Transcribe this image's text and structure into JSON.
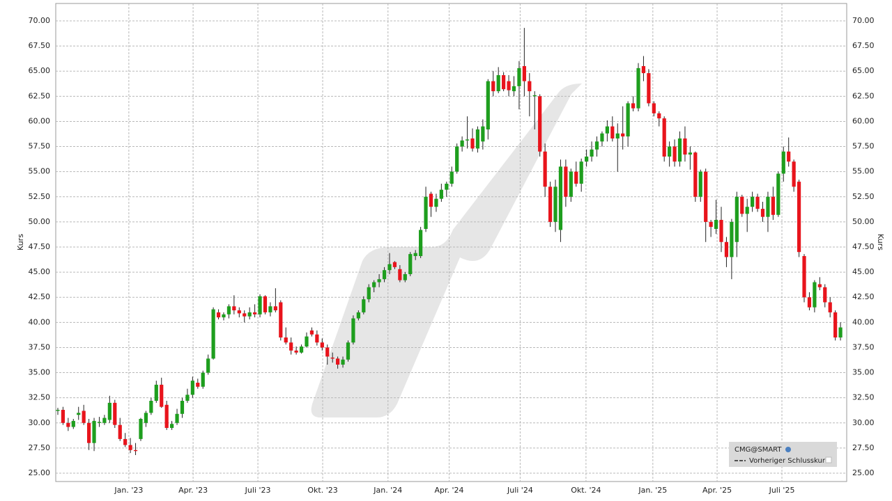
{
  "chart_data": {
    "type": "candlestick",
    "y_label": "Kurs",
    "legend": {
      "symbol": "CMG@SMART",
      "reference": "Vorheriger Schlusskurs"
    },
    "up_color": "#1e9e1e",
    "down_color": "#e8141c",
    "grid": true,
    "ylim": [
      24.17,
      71.73
    ],
    "yticks": [
      {
        "value": 25,
        "label": "25.00"
      },
      {
        "value": 27.5,
        "label": "27.50"
      },
      {
        "value": 30,
        "label": "30.00"
      },
      {
        "value": 32.5,
        "label": "32.50"
      },
      {
        "value": 35,
        "label": "35.00"
      },
      {
        "value": 37.5,
        "label": "37.50"
      },
      {
        "value": 40,
        "label": "40.00"
      },
      {
        "value": 42.5,
        "label": "42.50"
      },
      {
        "value": 45,
        "label": "45.00"
      },
      {
        "value": 47.5,
        "label": "47.50"
      },
      {
        "value": 50,
        "label": "50.00"
      },
      {
        "value": 52.5,
        "label": "52.50"
      },
      {
        "value": 55,
        "label": "55.00"
      },
      {
        "value": 57.5,
        "label": "57.50"
      },
      {
        "value": 60,
        "label": "60.00"
      },
      {
        "value": 62.5,
        "label": "62.50"
      },
      {
        "value": 65,
        "label": "65.00"
      },
      {
        "value": 67.5,
        "label": "67.50"
      },
      {
        "value": 70,
        "label": "70.00"
      }
    ],
    "xlim": [
      -0.4,
      152.2
    ],
    "xticks": [
      {
        "value": 13.7,
        "label": "Jan. '23"
      },
      {
        "value": 26.1,
        "label": "Apr. '23"
      },
      {
        "value": 38.6,
        "label": "Juli '23"
      },
      {
        "value": 51.1,
        "label": "Okt. '23"
      },
      {
        "value": 63.7,
        "label": "Jan. '24"
      },
      {
        "value": 75.5,
        "label": "Apr. '24"
      },
      {
        "value": 89.2,
        "label": "Juli '24"
      },
      {
        "value": 101.9,
        "label": "Okt. '24"
      },
      {
        "value": 114.8,
        "label": "Jan. '25"
      },
      {
        "value": 127.2,
        "label": "Apr. '25"
      },
      {
        "value": 139.7,
        "label": "Juli '25"
      }
    ],
    "ohlc": [
      [
        31.2,
        31.5,
        30.8,
        31.3
      ],
      [
        31.3,
        31.6,
        29.8,
        30.0
      ],
      [
        30.0,
        30.5,
        29.2,
        29.6
      ],
      [
        29.6,
        30.4,
        29.4,
        30.2
      ],
      [
        30.8,
        31.6,
        30.3,
        31.0
      ],
      [
        31.2,
        31.8,
        29.8,
        30.0
      ],
      [
        30.0,
        30.4,
        27.3,
        28.0
      ],
      [
        28.0,
        30.5,
        27.2,
        30.2
      ],
      [
        30.0,
        30.6,
        29.6,
        30.1
      ],
      [
        30.0,
        30.8,
        29.8,
        30.5
      ],
      [
        30.3,
        32.7,
        30.0,
        32.0
      ],
      [
        32.0,
        32.3,
        29.5,
        29.8
      ],
      [
        29.8,
        30.5,
        28.2,
        28.4
      ],
      [
        28.4,
        29.0,
        27.6,
        27.8
      ],
      [
        27.8,
        28.5,
        27.0,
        27.3
      ],
      [
        27.3,
        28.0,
        26.8,
        27.2
      ],
      [
        28.4,
        30.5,
        28.2,
        30.4
      ],
      [
        30.0,
        31.2,
        29.6,
        31.0
      ],
      [
        31.0,
        32.5,
        30.8,
        32.2
      ],
      [
        32.2,
        34.2,
        32.0,
        33.8
      ],
      [
        33.8,
        34.5,
        31.5,
        31.6
      ],
      [
        31.8,
        32.2,
        29.3,
        29.5
      ],
      [
        29.5,
        30.2,
        29.3,
        29.9
      ],
      [
        30.0,
        31.4,
        29.8,
        30.9
      ],
      [
        30.9,
        32.5,
        30.5,
        32.2
      ],
      [
        32.2,
        33.4,
        32.0,
        32.8
      ],
      [
        32.8,
        34.6,
        32.5,
        34.2
      ],
      [
        34.0,
        34.4,
        33.4,
        33.6
      ],
      [
        33.6,
        35.2,
        33.4,
        35.0
      ],
      [
        35.0,
        36.8,
        34.8,
        36.4
      ],
      [
        36.4,
        41.5,
        36.3,
        41.3
      ],
      [
        41.0,
        41.3,
        40.3,
        40.5
      ],
      [
        40.5,
        41.0,
        40.2,
        40.8
      ],
      [
        40.8,
        41.8,
        40.4,
        41.6
      ],
      [
        41.6,
        42.7,
        40.8,
        41.2
      ],
      [
        41.2,
        41.5,
        40.5,
        40.9
      ],
      [
        40.9,
        41.2,
        40.0,
        40.6
      ],
      [
        40.6,
        41.5,
        40.3,
        41.0
      ],
      [
        41.0,
        41.8,
        40.5,
        40.8
      ],
      [
        40.8,
        42.8,
        40.5,
        42.6
      ],
      [
        42.6,
        42.7,
        40.8,
        41.0
      ],
      [
        41.0,
        42.0,
        40.6,
        41.6
      ],
      [
        41.6,
        43.4,
        41.0,
        41.2
      ],
      [
        42.0,
        42.2,
        38.2,
        38.5
      ],
      [
        38.5,
        39.5,
        37.8,
        38.0
      ],
      [
        38.0,
        38.5,
        36.8,
        37.2
      ],
      [
        37.2,
        37.6,
        36.8,
        37.0
      ],
      [
        37.0,
        37.8,
        36.9,
        37.6
      ],
      [
        37.6,
        39.0,
        37.5,
        38.6
      ],
      [
        39.2,
        39.5,
        38.6,
        38.8
      ],
      [
        38.8,
        39.2,
        37.7,
        38.0
      ],
      [
        38.0,
        38.4,
        37.2,
        37.5
      ],
      [
        37.5,
        37.8,
        35.8,
        36.6
      ],
      [
        36.5,
        37.0,
        36.0,
        36.4
      ],
      [
        36.4,
        36.6,
        35.4,
        35.8
      ],
      [
        35.8,
        36.6,
        35.5,
        36.3
      ],
      [
        36.3,
        38.2,
        36.1,
        38.0
      ],
      [
        38.0,
        40.7,
        37.8,
        40.4
      ],
      [
        40.4,
        41.2,
        40.2,
        41.0
      ],
      [
        41.0,
        42.6,
        40.8,
        42.3
      ],
      [
        42.3,
        43.8,
        42.0,
        43.5
      ],
      [
        43.5,
        44.2,
        43.0,
        44.0
      ],
      [
        44.0,
        44.8,
        43.5,
        44.3
      ],
      [
        44.3,
        45.5,
        44.0,
        45.2
      ],
      [
        45.2,
        46.9,
        44.8,
        45.8
      ],
      [
        46.0,
        46.1,
        45.3,
        45.5
      ],
      [
        45.3,
        45.7,
        44.0,
        44.2
      ],
      [
        44.2,
        45.0,
        44.0,
        44.8
      ],
      [
        44.8,
        47.0,
        44.6,
        46.8
      ],
      [
        46.6,
        47.2,
        46.2,
        46.9
      ],
      [
        46.6,
        49.5,
        46.4,
        49.2
      ],
      [
        49.3,
        53.5,
        49.0,
        52.5
      ],
      [
        52.8,
        53.0,
        50.5,
        51.5
      ],
      [
        51.5,
        52.8,
        51.0,
        52.3
      ],
      [
        52.3,
        53.8,
        52.0,
        53.2
      ],
      [
        53.2,
        54.0,
        52.5,
        53.8
      ],
      [
        53.8,
        55.5,
        53.5,
        55.0
      ],
      [
        55.0,
        57.8,
        54.8,
        57.5
      ],
      [
        57.5,
        58.5,
        57.0,
        58.1
      ],
      [
        58.1,
        60.5,
        57.3,
        58.2
      ],
      [
        58.3,
        59.3,
        57.0,
        57.3
      ],
      [
        57.3,
        59.5,
        56.9,
        59.2
      ],
      [
        58.0,
        60.2,
        57.2,
        59.5
      ],
      [
        59.2,
        64.2,
        58.2,
        64.0
      ],
      [
        64.0,
        65.0,
        62.5,
        63.0
      ],
      [
        63.0,
        65.4,
        62.8,
        64.6
      ],
      [
        64.6,
        64.9,
        63.0,
        63.2
      ],
      [
        64.0,
        64.6,
        62.5,
        63.1
      ],
      [
        63.0,
        64.5,
        62.5,
        63.5
      ],
      [
        63.5,
        66.0,
        61.2,
        65.3
      ],
      [
        65.5,
        69.3,
        62.5,
        64.0
      ],
      [
        64.0,
        64.8,
        60.5,
        63.0
      ],
      [
        62.5,
        63.0,
        59.2,
        62.6
      ],
      [
        62.5,
        62.7,
        56.5,
        57.0
      ],
      [
        57.0,
        57.8,
        52.5,
        53.5
      ],
      [
        53.5,
        54.0,
        49.5,
        50.0
      ],
      [
        50.0,
        54.2,
        49.0,
        53.5
      ],
      [
        49.2,
        56.2,
        48.0,
        55.5
      ],
      [
        55.5,
        56.2,
        51.5,
        52.5
      ],
      [
        52.5,
        55.3,
        52.0,
        55.0
      ],
      [
        55.0,
        56.0,
        53.5,
        53.8
      ],
      [
        53.8,
        56.3,
        53.0,
        56.0
      ],
      [
        56.0,
        57.2,
        55.5,
        56.5
      ],
      [
        56.5,
        58.0,
        56.0,
        57.2
      ],
      [
        57.2,
        58.5,
        56.5,
        58.0
      ],
      [
        58.0,
        59.0,
        57.5,
        58.8
      ],
      [
        58.8,
        60.1,
        58.0,
        59.5
      ],
      [
        59.5,
        60.5,
        58.0,
        58.3
      ],
      [
        58.3,
        59.8,
        55.0,
        58.8
      ],
      [
        58.8,
        61.5,
        57.2,
        58.5
      ],
      [
        58.5,
        62.0,
        57.5,
        61.8
      ],
      [
        61.8,
        62.5,
        61.0,
        61.3
      ],
      [
        61.3,
        65.8,
        61.0,
        65.3
      ],
      [
        65.5,
        66.5,
        64.0,
        64.8
      ],
      [
        64.8,
        65.2,
        61.5,
        61.8
      ],
      [
        61.8,
        62.0,
        60.5,
        60.8
      ],
      [
        60.8,
        61.0,
        59.5,
        60.3
      ],
      [
        60.3,
        60.5,
        56.0,
        56.5
      ],
      [
        56.5,
        58.0,
        55.5,
        57.5
      ],
      [
        57.5,
        58.2,
        55.5,
        56.0
      ],
      [
        56.0,
        59.0,
        55.5,
        58.3
      ],
      [
        58.3,
        59.5,
        56.0,
        56.7
      ],
      [
        56.7,
        57.5,
        55.2,
        56.9
      ],
      [
        56.9,
        57.0,
        52.0,
        52.5
      ],
      [
        52.5,
        55.2,
        52.0,
        55.0
      ],
      [
        55.0,
        55.3,
        48.0,
        50.0
      ],
      [
        50.0,
        50.2,
        48.5,
        49.5
      ],
      [
        49.3,
        52.2,
        48.8,
        50.2
      ],
      [
        50.2,
        51.5,
        47.0,
        48.0
      ],
      [
        48.0,
        48.5,
        45.5,
        46.5
      ],
      [
        46.5,
        50.3,
        44.3,
        50.0
      ],
      [
        48.0,
        53.0,
        46.5,
        52.5
      ],
      [
        52.5,
        52.7,
        50.5,
        50.8
      ],
      [
        50.8,
        52.3,
        49.0,
        51.5
      ],
      [
        51.5,
        53.0,
        51.0,
        52.5
      ],
      [
        52.5,
        52.8,
        51.0,
        51.3
      ],
      [
        51.3,
        52.0,
        50.0,
        50.5
      ],
      [
        50.5,
        53.0,
        49.0,
        52.5
      ],
      [
        52.5,
        53.5,
        50.2,
        50.7
      ],
      [
        50.7,
        55.0,
        50.5,
        54.8
      ],
      [
        54.8,
        57.5,
        54.0,
        57.0
      ],
      [
        57.0,
        58.4,
        55.5,
        56.0
      ],
      [
        56.0,
        56.2,
        53.0,
        53.5
      ],
      [
        54.0,
        54.2,
        46.5,
        47.0
      ],
      [
        46.6,
        46.8,
        42.0,
        42.5
      ],
      [
        42.5,
        43.0,
        41.2,
        41.5
      ],
      [
        41.5,
        44.2,
        41.0,
        44.0
      ],
      [
        43.8,
        44.5,
        43.2,
        43.5
      ],
      [
        43.5,
        43.8,
        41.5,
        42.0
      ],
      [
        42.0,
        42.5,
        40.5,
        41.0
      ],
      [
        41.0,
        41.2,
        38.2,
        38.5
      ],
      [
        38.5,
        40.0,
        38.2,
        39.5
      ]
    ]
  }
}
